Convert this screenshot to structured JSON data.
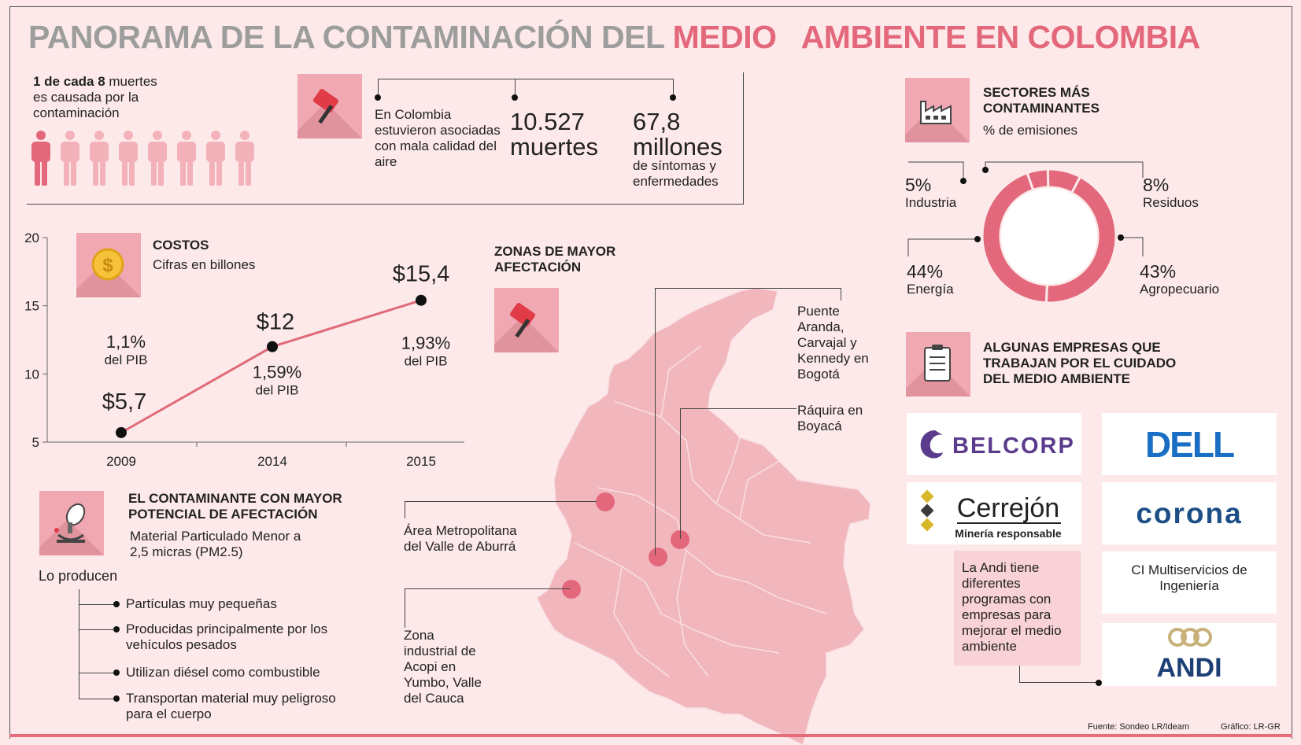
{
  "title": {
    "part1": "PANORAMA DE LA CONTAMINACIÓN DEL ",
    "part2": "MEDIO   AMBIENTE EN COLOMBIA"
  },
  "deaths": {
    "caption": "1 de cada 8 muertes es causada por la contaminación",
    "bold_part": "1 de cada 8",
    "rest": " muertes\nes causada por la\ncontaminación",
    "people_total": 8,
    "people_highlighted": 1
  },
  "air": {
    "label": "En Colombia estuvieron asociadas con mala calidad del aire",
    "deaths_number": "10.527",
    "deaths_unit": "muertes",
    "affected_number": "67,8",
    "affected_unit": "millones",
    "affected_caption": "de síntomas y enfermedades"
  },
  "costs": {
    "title": "COSTOS",
    "subtitle": "Cifras en billones"
  },
  "chart_data": {
    "type": "line",
    "title": "COSTOS",
    "subtitle": "Cifras en billones",
    "x": [
      "2009",
      "2014",
      "2015"
    ],
    "values": [
      5.7,
      12,
      15.4
    ],
    "value_labels": [
      "$5,7",
      "$12",
      "$15,4"
    ],
    "pib_values": [
      "1,1%",
      "1,59%",
      "1,93%"
    ],
    "pib_caption": "del PIB",
    "yticks": [
      "5",
      "10",
      "15",
      "20"
    ],
    "ylim": [
      5,
      20
    ],
    "color": "#e06b78"
  },
  "pollutant": {
    "title": "EL CONTAMINANTE CON MAYOR POTENCIAL DE AFECTACIÓN",
    "description": "Material Particulado Menor a 2,5 micras (PM2.5)",
    "producers_label": "Lo producen",
    "items": [
      "Partículas muy pequeñas",
      "Producidas principalmente por los vehículos pesados",
      "Utilizan diésel como combustible",
      "Transportan material muy peligroso para el cuerpo"
    ]
  },
  "zones": {
    "title": "ZONAS DE MAYOR AFECTACIÓN",
    "labels": [
      "Puente Aranda, Carvajal y Kennedy en Bogotá",
      "Ráquira en Boyacá",
      "Área Metropolitana del Valle de Aburrá",
      "Zona industrial de Acopi en Yumbo, Valle del Cauca"
    ]
  },
  "sectors": {
    "title": "SECTORES MÁS CONTAMINANTES",
    "subtitle": "% de emisiones",
    "slices": [
      {
        "label": "Industria",
        "percent": 5,
        "display": "5%"
      },
      {
        "label": "Residuos",
        "percent": 8,
        "display": "8%"
      },
      {
        "label": "Agropecuario",
        "percent": 43,
        "display": "43%"
      },
      {
        "label": "Energía",
        "percent": 44,
        "display": "44%"
      }
    ],
    "color": "#e06b78"
  },
  "companies": {
    "title": "ALGUNAS EMPRESAS QUE TRABAJAN POR EL CUIDADO DEL MEDIO AMBIENTE",
    "logos": [
      "BELCORP",
      "DELL",
      "Cerrejón",
      "Minería responsable",
      "corona",
      "CI Multiservicios de Ingeniería",
      "ANDI"
    ],
    "note": "La Andi tiene diferentes programas con empresas para mejorar el medio ambiente"
  },
  "footer": {
    "source": "Fuente: Sondeo LR/Ideam",
    "credit": "Gráfico: LR-GR"
  },
  "colors": {
    "accent": "#e3687b",
    "grey_title": "#9d9d9d",
    "background": "#fde9ea",
    "icon_box": "#f0a8b2",
    "map": "#f2b6bd"
  }
}
